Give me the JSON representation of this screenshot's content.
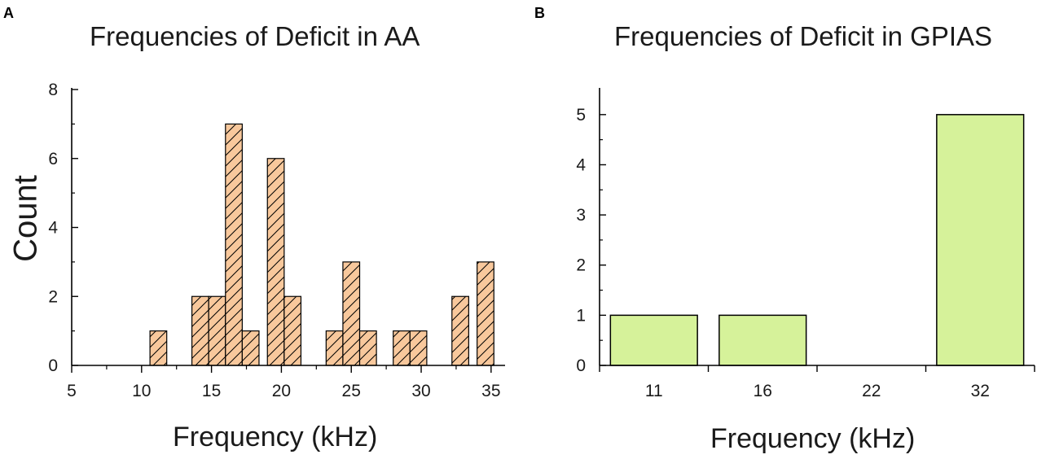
{
  "panels": {
    "a": {
      "letter": "A"
    },
    "b": {
      "letter": "B"
    }
  },
  "colors": {
    "a_fill": "#f8c89c",
    "b_fill": "#d6f29a",
    "stroke": "#000000"
  },
  "chart_data": [
    {
      "type": "bar",
      "title": "Frequencies of Deficit in AA",
      "xlabel": "Frequency (kHz)",
      "ylabel": "Count",
      "xlim": [
        5,
        36
      ],
      "ylim": [
        0,
        8
      ],
      "xticks": [
        5,
        10,
        15,
        20,
        25,
        30,
        35
      ],
      "yticks": [
        0,
        2,
        4,
        6,
        8
      ],
      "bin_width": 1.2,
      "pattern": "hatched",
      "bins": [
        {
          "x": 11.2,
          "value": 1
        },
        {
          "x": 14.2,
          "value": 2
        },
        {
          "x": 15.4,
          "value": 2
        },
        {
          "x": 16.6,
          "value": 7
        },
        {
          "x": 17.8,
          "value": 1
        },
        {
          "x": 19.6,
          "value": 6
        },
        {
          "x": 20.8,
          "value": 2
        },
        {
          "x": 23.8,
          "value": 1
        },
        {
          "x": 25.0,
          "value": 3
        },
        {
          "x": 26.2,
          "value": 1
        },
        {
          "x": 28.6,
          "value": 1
        },
        {
          "x": 29.8,
          "value": 1
        },
        {
          "x": 32.8,
          "value": 2
        },
        {
          "x": 34.6,
          "value": 3
        }
      ]
    },
    {
      "type": "bar",
      "title": "Frequencies of Deficit in GPIAS",
      "xlabel": "Frequency (kHz)",
      "ylabel": "",
      "categories": [
        "11",
        "16",
        "22",
        "32"
      ],
      "values": [
        1,
        1,
        0,
        5
      ],
      "ylim": [
        0,
        5.5
      ],
      "yticks": [
        0,
        1,
        2,
        3,
        4,
        5
      ]
    }
  ]
}
